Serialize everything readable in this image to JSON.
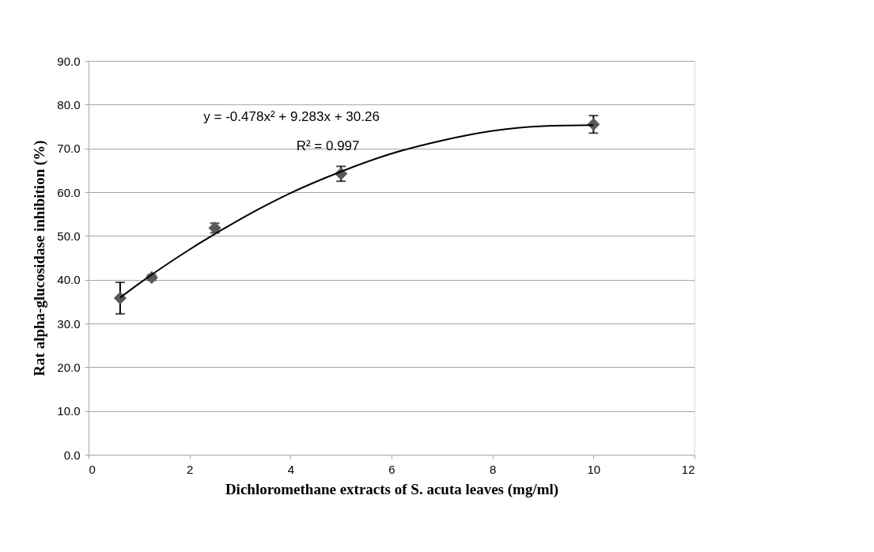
{
  "chart_data": {
    "type": "scatter",
    "xlabel": "Dichloromethane extracts of S. acuta leaves  (mg/ml)",
    "ylabel": "Rat alpha-glucosidase inhibition (%)",
    "x": [
      0.625,
      1.25,
      2.5,
      5,
      10
    ],
    "series": [
      {
        "color": "#595959",
        "marker": "diamond",
        "values": [
          35.8,
          40.5,
          51.8,
          64.2,
          75.5
        ],
        "errors": [
          3.6,
          0.6,
          1.1,
          1.7,
          2.0
        ]
      },
      {
        "type": "line",
        "color": "#000000",
        "marker": "none",
        "x": [
          0.625,
          1,
          2,
          3,
          4,
          5,
          6,
          7,
          8,
          9,
          10
        ],
        "values": [
          35.9,
          39.1,
          46.9,
          53.8,
          59.8,
          64.7,
          68.8,
          71.8,
          74.0,
          75.1,
          75.3
        ]
      }
    ],
    "annotations": [
      "y = -0.478x² + 9.283x + 30.26",
      "R² = 0.997"
    ],
    "xlim": [
      0,
      12
    ],
    "xticks": [
      0,
      2,
      4,
      6,
      8,
      10,
      12
    ],
    "ylim": [
      0,
      90
    ],
    "yticks": [
      {
        "value": 0,
        "label": "0.0"
      },
      {
        "value": 10,
        "label": "10.0"
      },
      {
        "value": 20,
        "label": "20.0"
      },
      {
        "value": 30,
        "label": "30.0"
      },
      {
        "value": 40,
        "label": "40.0"
      },
      {
        "value": 50,
        "label": "50.0"
      },
      {
        "value": 60,
        "label": "60.0"
      },
      {
        "value": 70,
        "label": "70.0"
      },
      {
        "value": 80,
        "label": "80.0"
      },
      {
        "value": 90,
        "label": "90.0"
      }
    ],
    "grid": "y"
  }
}
